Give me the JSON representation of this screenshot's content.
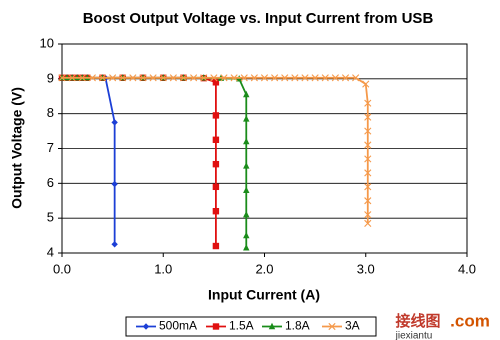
{
  "chart_data": {
    "type": "line",
    "title": "Boost Output Voltage vs. Input Current from USB",
    "x_label": "Input Current (A)",
    "y_label": "Output Voltage (V)",
    "xlim": [
      0,
      4
    ],
    "xticks": [
      {
        "value": 0,
        "label": "0.0"
      },
      {
        "value": 1,
        "label": "1.0"
      },
      {
        "value": 2,
        "label": "2.0"
      },
      {
        "value": 3,
        "label": "3.0"
      },
      {
        "value": 4,
        "label": "4.0"
      }
    ],
    "ylim": [
      4,
      10
    ],
    "yticks": [
      4,
      5,
      6,
      7,
      8,
      9,
      10
    ],
    "grid": "y",
    "legend": "bottom",
    "series": [
      {
        "name": "500mA",
        "color": "#1c3fd6",
        "marker": "diamond",
        "x": [
          0,
          0.05,
          0.1,
          0.15,
          0.2,
          0.25,
          0.43,
          0.52,
          0.52,
          0.52
        ],
        "values": [
          9.03,
          9.03,
          9.03,
          9.03,
          9.03,
          9.03,
          9.02,
          7.75,
          5.98,
          4.25
        ]
      },
      {
        "name": "1.5A",
        "color": "#e01010",
        "marker": "square",
        "x": [
          0,
          0.05,
          0.1,
          0.15,
          0.2,
          0.25,
          0.4,
          0.6,
          0.8,
          1.0,
          1.2,
          1.4,
          1.52,
          1.52,
          1.52,
          1.52,
          1.52,
          1.52,
          1.52
        ],
        "values": [
          9.03,
          9.03,
          9.03,
          9.03,
          9.03,
          9.03,
          9.03,
          9.03,
          9.03,
          9.03,
          9.03,
          9.02,
          8.9,
          7.95,
          7.25,
          6.55,
          5.9,
          5.2,
          4.2
        ]
      },
      {
        "name": "1.8A",
        "color": "#1a8c1a",
        "marker": "triangle",
        "x": [
          0,
          0.05,
          0.1,
          0.15,
          0.2,
          0.25,
          0.4,
          0.6,
          0.8,
          1.0,
          1.2,
          1.4,
          1.57,
          1.75,
          1.82,
          1.82,
          1.82,
          1.82,
          1.82,
          1.82,
          1.82,
          1.82
        ],
        "values": [
          9.03,
          9.03,
          9.03,
          9.03,
          9.03,
          9.03,
          9.03,
          9.03,
          9.03,
          9.03,
          9.03,
          9.03,
          9.02,
          9.0,
          8.55,
          7.85,
          7.2,
          6.5,
          5.8,
          5.1,
          4.5,
          4.15
        ]
      },
      {
        "name": "3A",
        "color": "#f5994a",
        "marker": "x",
        "x": [
          0,
          0.1,
          0.2,
          0.3,
          0.4,
          0.5,
          0.6,
          0.7,
          0.8,
          0.9,
          1.0,
          1.1,
          1.2,
          1.3,
          1.4,
          1.5,
          1.6,
          1.7,
          1.8,
          1.9,
          2.0,
          2.1,
          2.2,
          2.3,
          2.4,
          2.5,
          2.6,
          2.7,
          2.8,
          2.9,
          3.0,
          3.02,
          3.02,
          3.02,
          3.02,
          3.02,
          3.02,
          3.02,
          3.02,
          3.02,
          3.02
        ],
        "values": [
          9.03,
          9.03,
          9.03,
          9.03,
          9.03,
          9.03,
          9.03,
          9.03,
          9.03,
          9.03,
          9.03,
          9.03,
          9.03,
          9.03,
          9.03,
          9.03,
          9.03,
          9.03,
          9.03,
          9.03,
          9.03,
          9.03,
          9.03,
          9.03,
          9.03,
          9.03,
          9.03,
          9.03,
          9.03,
          9.03,
          8.85,
          8.3,
          7.9,
          7.5,
          7.1,
          6.7,
          6.3,
          5.9,
          5.5,
          5.1,
          4.85
        ]
      }
    ]
  },
  "watermark": {
    "site": "接线图",
    "tld": ".com",
    "domain": "jiexiantu"
  }
}
